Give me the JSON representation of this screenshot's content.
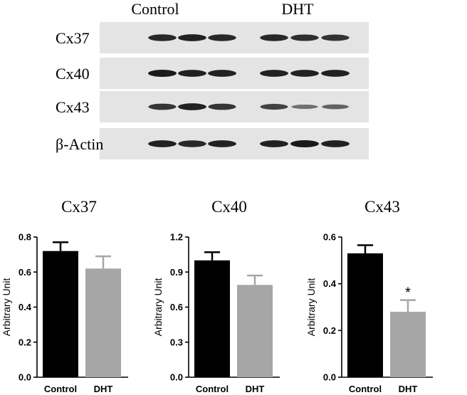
{
  "blot": {
    "groups": [
      "Control",
      "DHT"
    ],
    "rows": [
      {
        "label": "Cx37",
        "control": [
          0.9,
          0.95,
          0.9
        ],
        "dht": [
          0.9,
          0.85,
          0.82
        ]
      },
      {
        "label": "Cx40",
        "control": [
          1.0,
          0.95,
          0.95
        ],
        "dht": [
          0.95,
          0.95,
          0.95
        ]
      },
      {
        "label": "Cx43",
        "control": [
          0.8,
          0.95,
          0.8
        ],
        "dht": [
          0.7,
          0.35,
          0.45
        ]
      },
      {
        "label": "β-Actin",
        "control": [
          0.95,
          0.9,
          0.95
        ],
        "dht": [
          0.95,
          1.0,
          0.95
        ]
      }
    ]
  },
  "colors": {
    "control": "#000000",
    "dht": "#a6a6a6",
    "blot_bg": "#e4e4e4",
    "band": "#1a1a1a"
  },
  "chart_data": [
    {
      "type": "bar",
      "title": "Cx37",
      "ylabel": "Arbitrary Unit",
      "categories": [
        "Control",
        "DHT"
      ],
      "values": [
        0.72,
        0.62
      ],
      "errors": [
        0.05,
        0.07
      ],
      "ylim": [
        0,
        0.8
      ],
      "yticks": [
        "0.0",
        "0.2",
        "0.4",
        "0.6",
        "0.8"
      ],
      "annotations": [
        "",
        ""
      ]
    },
    {
      "type": "bar",
      "title": "Cx40",
      "ylabel": "Arbitrary Unit",
      "categories": [
        "Control",
        "DHT"
      ],
      "values": [
        1.0,
        0.79
      ],
      "errors": [
        0.07,
        0.08
      ],
      "ylim": [
        0,
        1.2
      ],
      "yticks": [
        "0.0",
        "0.3",
        "0.6",
        "0.9",
        "1.2"
      ],
      "annotations": [
        "",
        ""
      ]
    },
    {
      "type": "bar",
      "title": "Cx43",
      "ylabel": "Arbitrary Unit",
      "categories": [
        "Control",
        "DHT"
      ],
      "values": [
        0.53,
        0.28
      ],
      "errors": [
        0.035,
        0.05
      ],
      "ylim": [
        0,
        0.6
      ],
      "yticks": [
        "0.0",
        "0.2",
        "0.4",
        "0.6"
      ],
      "annotations": [
        "",
        "*"
      ]
    }
  ]
}
